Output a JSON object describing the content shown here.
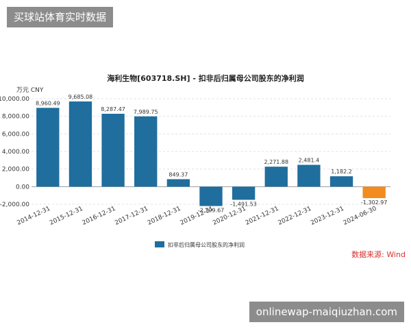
{
  "banner_top": "买球站体育实时数据",
  "banner_bottom": "onlinewap-maiqiuzhan.com",
  "source_text": "数据来源: Wind",
  "colors": {
    "positive": "#1f6e9e",
    "negative": "#f28c1e",
    "banner_bg": "#8c8c8c",
    "source": "#d9302c"
  },
  "chart_data": {
    "type": "bar",
    "title": "海利生物[603718.SH] - 扣非后归属母公司股东的净利润",
    "unit_label": "万元  CNY",
    "ylim": [
      -2000,
      10000
    ],
    "yticks": [
      "10,000.00",
      "8,000.00",
      "6,000.00",
      "4,000.00",
      "2,000.00",
      "0.00",
      "-2,000.00"
    ],
    "ytick_values": [
      10000,
      8000,
      6000,
      4000,
      2000,
      0,
      -2000
    ],
    "categories": [
      "2014-12-31",
      "2015-12-31",
      "2016-12-31",
      "2017-12-31",
      "2018-12-31",
      "2019-12-31",
      "2020-12-31",
      "2021-12-31",
      "2022-12-31",
      "2023-12-31",
      "2024-06-30"
    ],
    "values": [
      8960.49,
      9685.08,
      8287.47,
      7989.75,
      849.37,
      -2199.67,
      -1491.53,
      2271.88,
      2481.4,
      1182.2,
      -1302.97
    ],
    "data_labels": [
      "8,960.49",
      "9,685.08",
      "8,287.47",
      "7,989.75",
      "849.37",
      "-2,199.67",
      "-1,491.53",
      "2,271.88",
      "2,481.4",
      "1,182.2",
      "-1,302.97"
    ],
    "legend": "扣非后归属母公司股东的净利润",
    "legend_position": "bottom-center",
    "grid": true
  }
}
